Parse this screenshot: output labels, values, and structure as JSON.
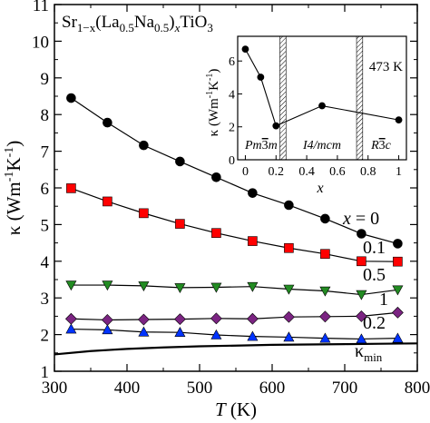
{
  "chart_data": [
    {
      "type": "line",
      "title": "Sr1−x(La0.5Na0.5)xTiO3",
      "title_parts": {
        "a": "Sr",
        "b": "1−x",
        "c": "(La",
        "d": "0.5",
        "e": "Na",
        "f": "0.5",
        "g": ")",
        "h": "x",
        "i": "TiO",
        "j": "3"
      },
      "xlabel": "T (K)",
      "xlabel_parts": {
        "italic": "T",
        "rest": " (K)"
      },
      "ylabel": "κ (Wm-1K-1)",
      "ylabel_parts": {
        "a": "κ (Wm",
        "b": "-1",
        "c": "K",
        "d": "-1",
        "e": ")"
      },
      "xlim": [
        300,
        800
      ],
      "ylim": [
        1,
        11
      ],
      "xticks": [
        300,
        400,
        500,
        600,
        700,
        800
      ],
      "yticks": [
        1,
        2,
        3,
        4,
        5,
        6,
        7,
        8,
        9,
        10,
        11
      ],
      "grid": false,
      "series": [
        {
          "name": "x = 0",
          "label_prefix": "x",
          "label_value": " = 0",
          "marker": "circle",
          "color": "#000000",
          "x": [
            323,
            373,
            423,
            473,
            523,
            573,
            623,
            673,
            723,
            773
          ],
          "y": [
            8.45,
            7.78,
            7.16,
            6.72,
            6.29,
            5.86,
            5.53,
            5.16,
            4.75,
            4.48
          ]
        },
        {
          "name": "0.1",
          "marker": "square",
          "color": "#ff0000",
          "x": [
            323,
            373,
            423,
            473,
            523,
            573,
            623,
            673,
            723,
            773
          ],
          "y": [
            5.99,
            5.63,
            5.31,
            5.02,
            4.77,
            4.55,
            4.36,
            4.2,
            4.0,
            3.99
          ]
        },
        {
          "name": "0.5",
          "marker": "triangle-down",
          "color": "#228b22",
          "x": [
            323,
            373,
            423,
            473,
            523,
            573,
            623,
            673,
            723,
            773
          ],
          "y": [
            3.35,
            3.35,
            3.33,
            3.28,
            3.29,
            3.31,
            3.24,
            3.19,
            3.09,
            3.22
          ]
        },
        {
          "name": "1",
          "marker": "diamond",
          "color": "#7b2482",
          "x": [
            323,
            373,
            423,
            473,
            523,
            573,
            623,
            673,
            723,
            773
          ],
          "y": [
            2.43,
            2.4,
            2.41,
            2.42,
            2.44,
            2.43,
            2.48,
            2.49,
            2.5,
            2.6
          ]
        },
        {
          "name": "0.2",
          "marker": "triangle-up",
          "color": "#0033ff",
          "x": [
            323,
            373,
            423,
            473,
            523,
            573,
            623,
            673,
            723,
            773
          ],
          "y": [
            2.15,
            2.13,
            2.07,
            2.06,
            1.99,
            1.95,
            1.93,
            1.9,
            1.88,
            1.9
          ]
        },
        {
          "name": "κmin",
          "label_main": "κ",
          "label_sub": "min",
          "marker": "none",
          "color": "#000000",
          "x": [
            300,
            350,
            400,
            450,
            500,
            550,
            600,
            650,
            700,
            750,
            800
          ],
          "y": [
            1.46,
            1.55,
            1.61,
            1.65,
            1.68,
            1.7,
            1.72,
            1.73,
            1.74,
            1.75,
            1.76
          ]
        }
      ]
    },
    {
      "type": "line",
      "title": "473 K",
      "xlabel": "x",
      "ylabel": "κ (Wm-1K-1)",
      "ylabel_parts": {
        "a": "κ (Wm",
        "b": "-1",
        "c": "K",
        "d": "-1",
        "e": ")"
      },
      "xlim": [
        -0.05,
        1.05
      ],
      "ylim": [
        0,
        7.5
      ],
      "xticks": [
        0,
        0.2,
        0.4,
        0.6,
        0.8,
        1
      ],
      "xtick_labels": [
        "0",
        "0.2",
        "0.4",
        "0.6",
        "0.8",
        "1"
      ],
      "yticks": [
        0,
        2,
        4,
        6
      ],
      "phase_boundaries": [
        {
          "from": 0.225,
          "to": 0.265
        },
        {
          "from": 0.725,
          "to": 0.765
        }
      ],
      "phase_labels": [
        {
          "main": "Pm",
          "bar": "3",
          "tail": "m",
          "x": 0.08
        },
        {
          "main": "I4/mcm",
          "x": 0.5
        },
        {
          "main": "R",
          "bar": "3",
          "tail": "c",
          "x": 0.9
        }
      ],
      "series": [
        {
          "marker": "circle",
          "color": "#000000",
          "x": [
            0,
            0.1,
            0.2,
            0.5,
            1
          ],
          "y": [
            6.72,
            5.02,
            2.06,
            3.28,
            2.42
          ]
        }
      ]
    }
  ]
}
